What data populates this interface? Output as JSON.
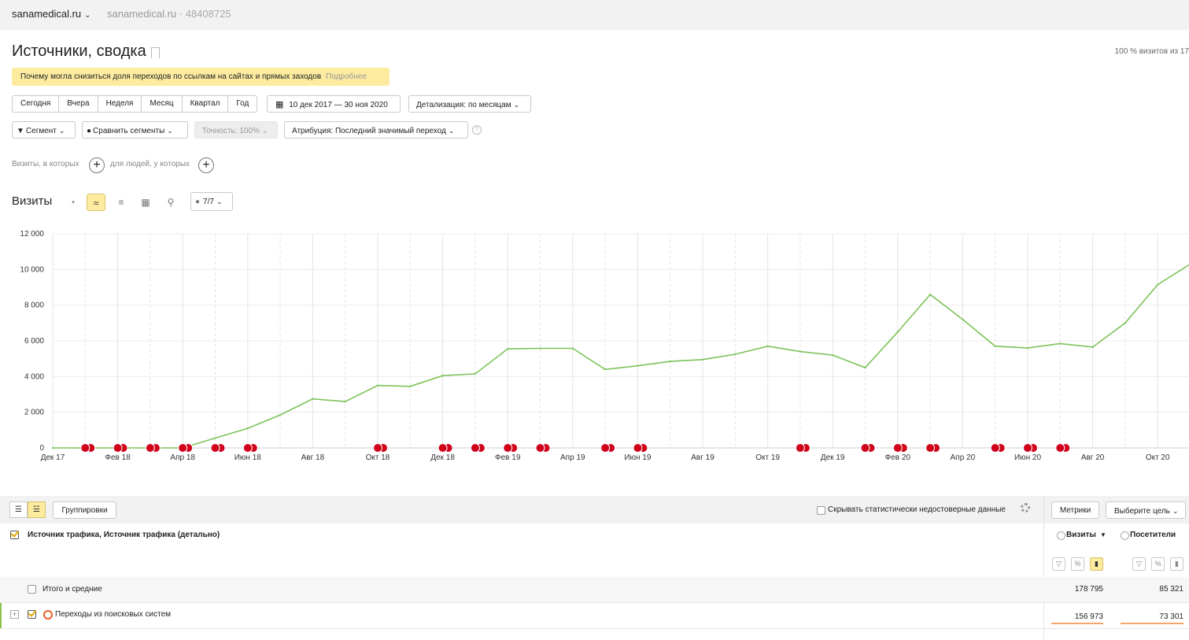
{
  "topbar": {
    "site": "sanamedical.ru",
    "counter_site": "sanamedical.ru",
    "counter_id": "48408725"
  },
  "page": {
    "title": "Источники, сводка",
    "visits_share": "100 % визитов из 17"
  },
  "notice": {
    "text": "Почему могла снизиться доля переходов по ссылкам на сайтах и прямых заходов",
    "more": "Подробнее"
  },
  "period": {
    "items": [
      "Сегодня",
      "Вчера",
      "Неделя",
      "Месяц",
      "Квартал",
      "Год"
    ],
    "date_range": "10 дек 2017 — 30 ноя 2020",
    "detail": "Детализация: по месяцам"
  },
  "filters": {
    "segment": "Сегмент",
    "compare": "Сравнить сегменты",
    "accuracy": "Точность: 100%",
    "attribution": "Атрибуция: Последний значимый переход"
  },
  "conditions": {
    "visits_where": "Визиты, в которых",
    "people_where": "для людей, у которых"
  },
  "chart_header": {
    "label": "Визиты",
    "notes": "7/7"
  },
  "chart_data": {
    "type": "line",
    "x": [
      "Дек 17",
      "Янв 18",
      "Фев 18",
      "Мар 18",
      "Апр 18",
      "Май 18",
      "Июн 18",
      "Июл 18",
      "Авг 18",
      "Сен 18",
      "Окт 18",
      "Ноя 18",
      "Дек 18",
      "Янв 19",
      "Фев 19",
      "Мар 19",
      "Апр 19",
      "Май 19",
      "Июн 19",
      "Июл 19",
      "Авг 19",
      "Сен 19",
      "Окт 19",
      "Ноя 19",
      "Дек 19",
      "Янв 20",
      "Фев 20",
      "Мар 20",
      "Апр 20",
      "Май 20",
      "Июн 20",
      "Июл 20",
      "Авг 20",
      "Сен 20",
      "Окт 20",
      "Ноя 20"
    ],
    "tick_labels": [
      "Дек 17",
      "Фев 18",
      "Апр 18",
      "Июн 18",
      "Авг 18",
      "Окт 18",
      "Дек 18",
      "Фев 19",
      "Апр 19",
      "Июн 19",
      "Авг 19",
      "Окт 19",
      "Дек 19",
      "Фев 20",
      "Апр 20",
      "Июн 20",
      "Авг 20",
      "Окт 20"
    ],
    "series": [
      {
        "values": [
          0,
          0,
          0,
          0,
          0,
          550,
          1100,
          1850,
          2750,
          2600,
          3500,
          3450,
          4050,
          4150,
          5550,
          5580,
          5580,
          4400,
          4600,
          4850,
          4950,
          5250,
          5700,
          5400,
          5200,
          4500,
          6500,
          8600,
          7200,
          5700,
          5600,
          5850,
          5650,
          7000,
          9150,
          10300
        ]
      }
    ],
    "annotation_months": [
      "Янв 18",
      "Фев 18",
      "Мар 18",
      "Апр 18",
      "Май 18",
      "Июн 18",
      "Окт 18",
      "Дек 18",
      "Янв 19",
      "Фев 19",
      "Мар 19",
      "Май 19",
      "Июн 19",
      "Ноя 19",
      "Янв 20",
      "Фев 20",
      "Мар 20",
      "Май 20",
      "Июн 20",
      "Июл 20"
    ],
    "ylim": [
      0,
      12000
    ],
    "yticks": [
      "0",
      "2 000",
      "4 000",
      "6 000",
      "8 000",
      "10 000",
      "12 000"
    ],
    "grid": true,
    "color": "#7cc35a",
    "annotation_color": "#d0021b"
  },
  "table": {
    "groupings": "Группировки",
    "hide_unreliable": "Скрывать статистически недостоверные данные",
    "metrics_btn": "Метрики",
    "goal_btn": "Выберите цель",
    "dimension_header": "Источник трафика, Источник трафика (детально)",
    "col_visits": "Визиты",
    "col_visitors": "Посетители",
    "rows": [
      {
        "label": "Итого и средние",
        "visits": "178 795",
        "visitors": "85 321"
      },
      {
        "label": "Переходы из поисковых систем",
        "visits": "156 973",
        "visitors": "73 301"
      }
    ]
  }
}
